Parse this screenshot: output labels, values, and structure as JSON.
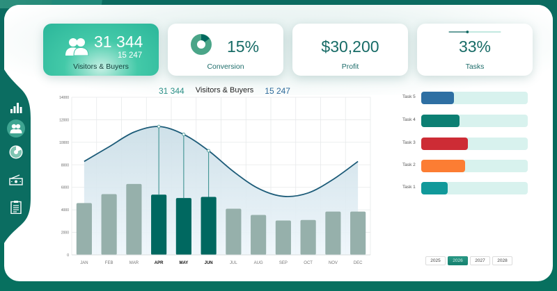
{
  "kpis": {
    "visitors": {
      "value": "31 344",
      "secondary": "15 247",
      "label": "Visitors & Buyers",
      "icon": "users-icon"
    },
    "conversion": {
      "value": "15%",
      "label": "Conversion",
      "icon": "donut-chart-icon",
      "percent": 15
    },
    "profit": {
      "value": "$30,200",
      "label": "Profit"
    },
    "tasks": {
      "value": "33%",
      "label": "Tasks",
      "slider_percent": 33
    }
  },
  "sidebar": {
    "items": [
      {
        "name": "bar-chart-icon",
        "active": false
      },
      {
        "name": "users-icon",
        "active": true
      },
      {
        "name": "donut-chart-icon",
        "active": false
      },
      {
        "name": "money-icon",
        "active": false
      },
      {
        "name": "clipboard-icon",
        "active": false
      }
    ]
  },
  "chart_legend": {
    "visitors": "31 344",
    "title": "Visitors & Buyers",
    "buyers": "15 247"
  },
  "chart_data": {
    "type": "bar",
    "title": "Visitors & Buyers",
    "categories": [
      "JAN",
      "FEB",
      "MAR",
      "APR",
      "MAY",
      "JUN",
      "JUL",
      "AUG",
      "SEP",
      "OCT",
      "NOV",
      "DEC"
    ],
    "highlighted": [
      "APR",
      "MAY",
      "JUN"
    ],
    "series": [
      {
        "name": "Buyers",
        "type": "bar",
        "values": [
          4600,
          5400,
          6300,
          5350,
          5050,
          5150,
          4100,
          3550,
          3050,
          3100,
          3850,
          3850
        ]
      },
      {
        "name": "Visitors",
        "type": "area",
        "values": [
          8300,
          9600,
          10900,
          11400,
          10700,
          9250,
          7400,
          5900,
          5200,
          5500,
          6700,
          8300
        ]
      }
    ],
    "yticks": [
      0,
      2000,
      4000,
      6000,
      8000,
      10000,
      12000,
      14000
    ],
    "ylim": [
      0,
      14000
    ],
    "xlabel": "",
    "ylabel": "",
    "grid": true
  },
  "tasks": [
    {
      "label": "Task 5",
      "percent": 31,
      "color": "#2e6fa3"
    },
    {
      "label": "Task 4",
      "percent": 36,
      "color": "#0c7f73"
    },
    {
      "label": "Task 3",
      "percent": 44,
      "color": "#cd2c35"
    },
    {
      "label": "Task 2",
      "percent": 41,
      "color": "#fc7d33"
    },
    {
      "label": "Task 1",
      "percent": 25,
      "color": "#11999a"
    }
  ],
  "years": [
    {
      "label": "2025",
      "active": false
    },
    {
      "label": "2026",
      "active": true
    },
    {
      "label": "2027",
      "active": false
    },
    {
      "label": "2028",
      "active": false
    }
  ],
  "colors": {
    "bar_default": "#96b0ab",
    "bar_highlight": "#006860",
    "curve": "#1c5b78",
    "area_fill": "#dbe8ef",
    "accent": "#176b66"
  }
}
